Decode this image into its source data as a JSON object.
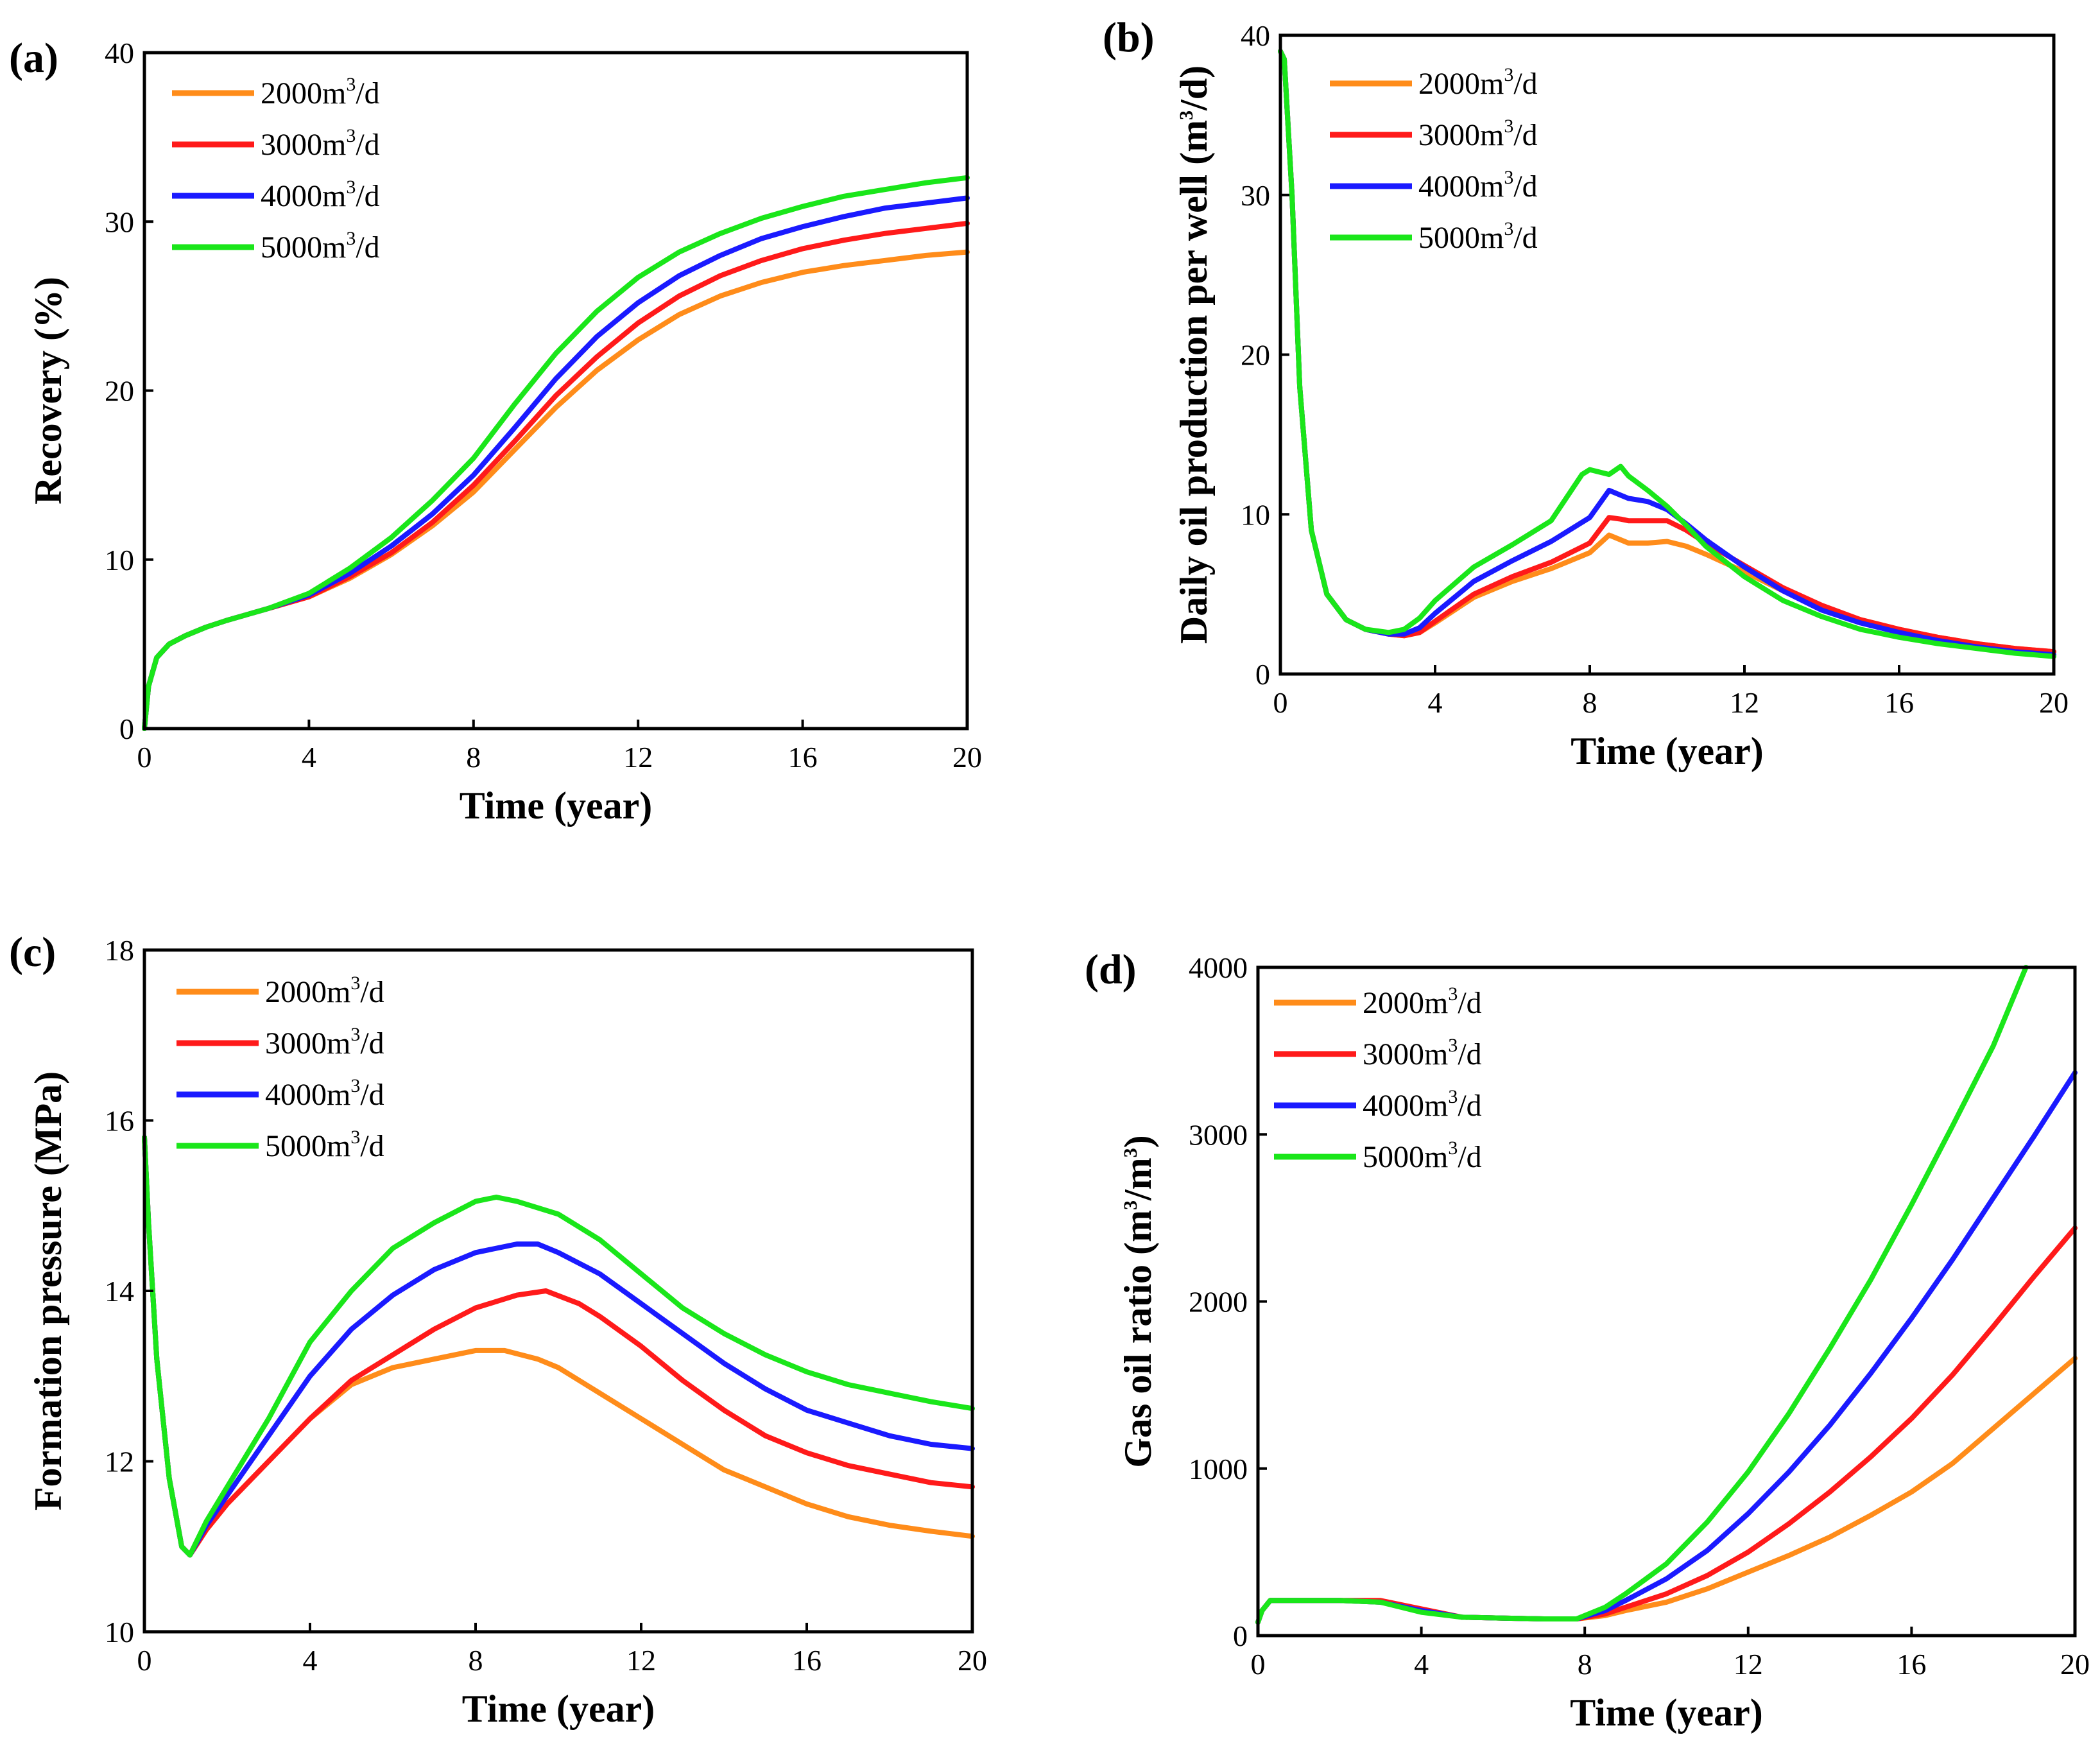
{
  "colors": {
    "2000": "#ff8c1a",
    "3000": "#ff1a1a",
    "4000": "#1a1aff",
    "5000": "#1ae61a"
  },
  "legend_sup": "3",
  "chart_data": [
    {
      "type": "line",
      "panel": "(a)",
      "xlabel": "Time (year)",
      "ylabel": "Recovery (%)",
      "xlim": [
        0,
        20
      ],
      "ylim": [
        0,
        40
      ],
      "xticks": [
        "0",
        "4",
        "8",
        "12",
        "16",
        "20"
      ],
      "yticks": [
        "0",
        "10",
        "20",
        "30",
        "40"
      ],
      "legend_position": "top-left",
      "series": [
        {
          "name": "2000m3/d",
          "legend_base": "2000m",
          "legend_tail": "/d",
          "color_key": "2000",
          "x": [
            0,
            0.1,
            0.3,
            0.6,
            1,
            1.5,
            2,
            3,
            4,
            5,
            6,
            7,
            8,
            9,
            10,
            11,
            12,
            13,
            14,
            15,
            16,
            17,
            18,
            19,
            20
          ],
          "y": [
            0,
            2.5,
            4.2,
            5.0,
            5.5,
            6.0,
            6.4,
            7.1,
            7.8,
            8.9,
            10.3,
            12.0,
            14.0,
            16.5,
            19.0,
            21.2,
            23.0,
            24.5,
            25.6,
            26.4,
            27.0,
            27.4,
            27.7,
            28.0,
            28.2
          ]
        },
        {
          "name": "3000m3/d",
          "legend_base": "3000m",
          "legend_tail": "/d",
          "color_key": "3000",
          "x": [
            0,
            0.1,
            0.3,
            0.6,
            1,
            1.5,
            2,
            3,
            4,
            5,
            6,
            7,
            8,
            9,
            10,
            11,
            12,
            13,
            14,
            15,
            16,
            17,
            18,
            19,
            20
          ],
          "y": [
            0,
            2.5,
            4.2,
            5.0,
            5.5,
            6.0,
            6.4,
            7.1,
            7.8,
            9.0,
            10.4,
            12.2,
            14.4,
            17.0,
            19.7,
            22.0,
            24.0,
            25.6,
            26.8,
            27.7,
            28.4,
            28.9,
            29.3,
            29.6,
            29.9
          ]
        },
        {
          "name": "4000m3/d",
          "legend_base": "4000m",
          "legend_tail": "/d",
          "color_key": "4000",
          "x": [
            0,
            0.1,
            0.3,
            0.6,
            1,
            1.5,
            2,
            3,
            4,
            5,
            6,
            7,
            8,
            9,
            10,
            11,
            12,
            13,
            14,
            15,
            16,
            17,
            18,
            19,
            20
          ],
          "y": [
            0,
            2.5,
            4.2,
            5.0,
            5.5,
            6.0,
            6.4,
            7.1,
            7.9,
            9.2,
            10.8,
            12.7,
            15.0,
            17.8,
            20.7,
            23.2,
            25.2,
            26.8,
            28.0,
            29.0,
            29.7,
            30.3,
            30.8,
            31.1,
            31.4
          ]
        },
        {
          "name": "5000m3/d",
          "legend_base": "5000m",
          "legend_tail": "/d",
          "color_key": "5000",
          "x": [
            0,
            0.1,
            0.3,
            0.6,
            1,
            1.5,
            2,
            3,
            4,
            5,
            6,
            7,
            8,
            9,
            10,
            11,
            12,
            13,
            14,
            15,
            16,
            17,
            18,
            19,
            20
          ],
          "y": [
            0,
            2.5,
            4.2,
            5.0,
            5.5,
            6.0,
            6.4,
            7.1,
            8.0,
            9.5,
            11.3,
            13.5,
            16.0,
            19.2,
            22.2,
            24.7,
            26.7,
            28.2,
            29.3,
            30.2,
            30.9,
            31.5,
            31.9,
            32.3,
            32.6
          ]
        }
      ]
    },
    {
      "type": "line",
      "panel": "(b)",
      "xlabel": "Time (year)",
      "ylabel_base": "Daily oil production per well (m",
      "ylabel_tail": "/d)",
      "xlim": [
        0,
        20
      ],
      "ylim": [
        0,
        40
      ],
      "xticks": [
        "0",
        "4",
        "8",
        "12",
        "16",
        "20"
      ],
      "yticks": [
        "0",
        "10",
        "20",
        "30",
        "40"
      ],
      "legend_position": "top-left",
      "series": [
        {
          "name": "2000m3/d",
          "legend_base": "2000m",
          "legend_tail": "/d",
          "color_key": "2000",
          "x": [
            0,
            0.1,
            0.3,
            0.5,
            0.8,
            1.2,
            1.7,
            2.2,
            2.8,
            3.2,
            3.6,
            4,
            5,
            6,
            7,
            8,
            8.5,
            8.8,
            9,
            9.5,
            10,
            10.5,
            11,
            12,
            13,
            14,
            15,
            16,
            17,
            18,
            19,
            20
          ],
          "y": [
            39,
            38.5,
            30,
            18,
            9,
            5,
            3.4,
            2.8,
            2.5,
            2.4,
            2.6,
            3.2,
            4.8,
            5.8,
            6.6,
            7.6,
            8.7,
            8.4,
            8.2,
            8.2,
            8.3,
            8.0,
            7.5,
            6.4,
            5.2,
            4.2,
            3.4,
            2.8,
            2.3,
            1.9,
            1.6,
            1.4
          ]
        },
        {
          "name": "3000m3/d",
          "legend_base": "3000m",
          "legend_tail": "/d",
          "color_key": "3000",
          "x": [
            0,
            0.1,
            0.3,
            0.5,
            0.8,
            1.2,
            1.7,
            2.2,
            2.8,
            3.2,
            3.6,
            4,
            5,
            6,
            7,
            8,
            8.5,
            8.8,
            9,
            9.5,
            10,
            10.5,
            11,
            12,
            13,
            14,
            15,
            16,
            17,
            18,
            19,
            20
          ],
          "y": [
            39,
            38.5,
            30,
            18,
            9,
            5,
            3.4,
            2.8,
            2.5,
            2.4,
            2.6,
            3.3,
            5.0,
            6.1,
            7.0,
            8.2,
            9.8,
            9.7,
            9.6,
            9.6,
            9.6,
            9.0,
            8.2,
            6.8,
            5.4,
            4.3,
            3.4,
            2.8,
            2.3,
            1.9,
            1.6,
            1.4
          ]
        },
        {
          "name": "4000m3/d",
          "legend_base": "4000m",
          "legend_tail": "/d",
          "color_key": "4000",
          "x": [
            0,
            0.1,
            0.3,
            0.5,
            0.8,
            1.2,
            1.7,
            2.2,
            2.8,
            3.2,
            3.6,
            4,
            5,
            6,
            7,
            8,
            8.5,
            8.8,
            9,
            9.5,
            10,
            10.5,
            11,
            12,
            13,
            14,
            15,
            16,
            17,
            18,
            19,
            20
          ],
          "y": [
            39,
            38.5,
            30,
            18,
            9,
            5,
            3.4,
            2.8,
            2.5,
            2.5,
            2.9,
            3.8,
            5.8,
            7.1,
            8.3,
            9.8,
            11.5,
            11.2,
            11.0,
            10.8,
            10.3,
            9.4,
            8.4,
            6.7,
            5.2,
            4.0,
            3.2,
            2.6,
            2.1,
            1.7,
            1.4,
            1.2
          ]
        },
        {
          "name": "5000m3/d",
          "legend_base": "5000m",
          "legend_tail": "/d",
          "color_key": "5000",
          "x": [
            0,
            0.1,
            0.3,
            0.5,
            0.8,
            1.2,
            1.7,
            2.2,
            2.8,
            3.2,
            3.6,
            4,
            5,
            6,
            7,
            7.8,
            8,
            8.5,
            8.8,
            9,
            9.5,
            10,
            10.5,
            11,
            12,
            13,
            14,
            15,
            16,
            17,
            18,
            19,
            20
          ],
          "y": [
            39,
            38.5,
            30,
            18,
            9,
            5,
            3.4,
            2.8,
            2.6,
            2.8,
            3.5,
            4.6,
            6.7,
            8.1,
            9.6,
            12.5,
            12.8,
            12.5,
            13.0,
            12.4,
            11.5,
            10.5,
            9.3,
            8.0,
            6.1,
            4.6,
            3.6,
            2.8,
            2.3,
            1.9,
            1.6,
            1.3,
            1.1
          ]
        }
      ]
    },
    {
      "type": "line",
      "panel": "(c)",
      "xlabel": "Time (year)",
      "ylabel": "Formation pressure (MPa)",
      "xlim": [
        0,
        20
      ],
      "ylim": [
        10,
        18
      ],
      "xticks": [
        "0",
        "4",
        "8",
        "12",
        "16",
        "20"
      ],
      "yticks": [
        "10",
        "12",
        "14",
        "16",
        "18"
      ],
      "legend_position": "top-left",
      "series": [
        {
          "name": "2000m3/d",
          "legend_base": "2000m",
          "legend_tail": "/d",
          "color_key": "2000",
          "x": [
            0,
            0.1,
            0.3,
            0.6,
            0.9,
            1.1,
            1.5,
            2,
            3,
            4,
            5,
            6,
            7,
            8,
            8.7,
            9.5,
            10,
            11,
            12,
            13,
            14,
            15,
            16,
            17,
            18,
            19,
            20
          ],
          "y": [
            15.8,
            14.8,
            13.2,
            11.8,
            11.0,
            10.9,
            11.2,
            11.5,
            12.0,
            12.5,
            12.9,
            13.1,
            13.2,
            13.3,
            13.3,
            13.2,
            13.1,
            12.8,
            12.5,
            12.2,
            11.9,
            11.7,
            11.5,
            11.35,
            11.25,
            11.18,
            11.12
          ]
        },
        {
          "name": "3000m3/d",
          "legend_base": "3000m",
          "legend_tail": "/d",
          "color_key": "3000",
          "x": [
            0,
            0.1,
            0.3,
            0.6,
            0.9,
            1.1,
            1.5,
            2,
            3,
            4,
            5,
            6,
            7,
            8,
            9,
            9.7,
            10.5,
            11,
            12,
            13,
            14,
            15,
            16,
            17,
            18,
            19,
            20
          ],
          "y": [
            15.8,
            14.8,
            13.2,
            11.8,
            11.0,
            10.9,
            11.2,
            11.5,
            12.0,
            12.5,
            12.95,
            13.25,
            13.55,
            13.8,
            13.95,
            14.0,
            13.85,
            13.7,
            13.35,
            12.95,
            12.6,
            12.3,
            12.1,
            11.95,
            11.85,
            11.75,
            11.7
          ]
        },
        {
          "name": "4000m3/d",
          "legend_base": "4000m",
          "legend_tail": "/d",
          "color_key": "4000",
          "x": [
            0,
            0.1,
            0.3,
            0.6,
            0.9,
            1.1,
            1.5,
            2,
            3,
            4,
            5,
            6,
            7,
            8,
            9,
            9.5,
            10,
            11,
            12,
            13,
            14,
            15,
            16,
            17,
            18,
            19,
            20
          ],
          "y": [
            15.8,
            14.8,
            13.2,
            11.8,
            11.0,
            10.9,
            11.25,
            11.6,
            12.3,
            13.0,
            13.55,
            13.95,
            14.25,
            14.45,
            14.55,
            14.55,
            14.45,
            14.2,
            13.85,
            13.5,
            13.15,
            12.85,
            12.6,
            12.45,
            12.3,
            12.2,
            12.15
          ]
        },
        {
          "name": "5000m3/d",
          "legend_base": "5000m",
          "legend_tail": "/d",
          "color_key": "5000",
          "x": [
            0,
            0.1,
            0.3,
            0.6,
            0.9,
            1.1,
            1.5,
            2,
            3,
            4,
            5,
            6,
            7,
            8,
            8.5,
            9,
            10,
            11,
            12,
            13,
            14,
            15,
            16,
            17,
            18,
            19,
            20
          ],
          "y": [
            15.8,
            14.8,
            13.2,
            11.8,
            11.0,
            10.9,
            11.3,
            11.7,
            12.5,
            13.4,
            14.0,
            14.5,
            14.8,
            15.05,
            15.1,
            15.05,
            14.9,
            14.6,
            14.2,
            13.8,
            13.5,
            13.25,
            13.05,
            12.9,
            12.8,
            12.7,
            12.62
          ]
        }
      ]
    },
    {
      "type": "line",
      "panel": "(d)",
      "xlabel": "Time (year)",
      "ylabel_base": "Gas oil ratio  (m",
      "ylabel_mid": "/m",
      "ylabel_tail": ")",
      "xlim": [
        0,
        20
      ],
      "ylim": [
        0,
        4000
      ],
      "xticks": [
        "0",
        "4",
        "8",
        "12",
        "16",
        "20"
      ],
      "yticks": [
        "0",
        "1000",
        "2000",
        "3000",
        "4000"
      ],
      "legend_position": "top-left",
      "series": [
        {
          "name": "2000m3/d",
          "legend_base": "2000m",
          "legend_tail": "/d",
          "color_key": "2000",
          "x": [
            0,
            0.1,
            0.3,
            1,
            2,
            3,
            4,
            5,
            6,
            7,
            7.8,
            8.5,
            9,
            10,
            11,
            12,
            13,
            14,
            15,
            16,
            17,
            18,
            19,
            20
          ],
          "y": [
            80,
            150,
            210,
            210,
            210,
            200,
            150,
            110,
            105,
            100,
            100,
            120,
            150,
            200,
            280,
            380,
            480,
            590,
            720,
            860,
            1030,
            1240,
            1450,
            1660
          ]
        },
        {
          "name": "3000m3/d",
          "legend_base": "3000m",
          "legend_tail": "/d",
          "color_key": "3000",
          "x": [
            0,
            0.1,
            0.3,
            1,
            2,
            3,
            4,
            5,
            6,
            7,
            7.8,
            8.5,
            9,
            10,
            11,
            12,
            13,
            14,
            15,
            16,
            17,
            18,
            19,
            20
          ],
          "y": [
            80,
            150,
            210,
            210,
            210,
            210,
            160,
            110,
            105,
            100,
            100,
            130,
            170,
            250,
            360,
            500,
            670,
            860,
            1070,
            1300,
            1560,
            1850,
            2150,
            2440
          ]
        },
        {
          "name": "4000m3/d",
          "legend_base": "4000m",
          "legend_tail": "/d",
          "color_key": "4000",
          "x": [
            0,
            0.1,
            0.3,
            1,
            2,
            3,
            4,
            5,
            6,
            7,
            7.8,
            8.5,
            9,
            10,
            11,
            12,
            13,
            14,
            15,
            16,
            17,
            18,
            19,
            20
          ],
          "y": [
            80,
            150,
            210,
            210,
            210,
            200,
            150,
            110,
            105,
            100,
            100,
            150,
            210,
            340,
            510,
            730,
            980,
            1260,
            1570,
            1900,
            2250,
            2620,
            2990,
            3370
          ]
        },
        {
          "name": "5000m3/d",
          "legend_base": "5000m",
          "legend_tail": "/d",
          "color_key": "5000",
          "x": [
            0,
            0.1,
            0.3,
            1,
            2,
            3,
            3.5,
            4,
            5,
            6,
            7,
            7.8,
            8.5,
            9,
            10,
            11,
            12,
            13,
            14,
            15,
            16,
            17,
            18,
            18.8
          ],
          "y": [
            80,
            150,
            210,
            210,
            210,
            200,
            170,
            140,
            110,
            105,
            100,
            100,
            170,
            250,
            430,
            680,
            980,
            1330,
            1720,
            2130,
            2580,
            3050,
            3530,
            4000
          ]
        }
      ]
    }
  ]
}
